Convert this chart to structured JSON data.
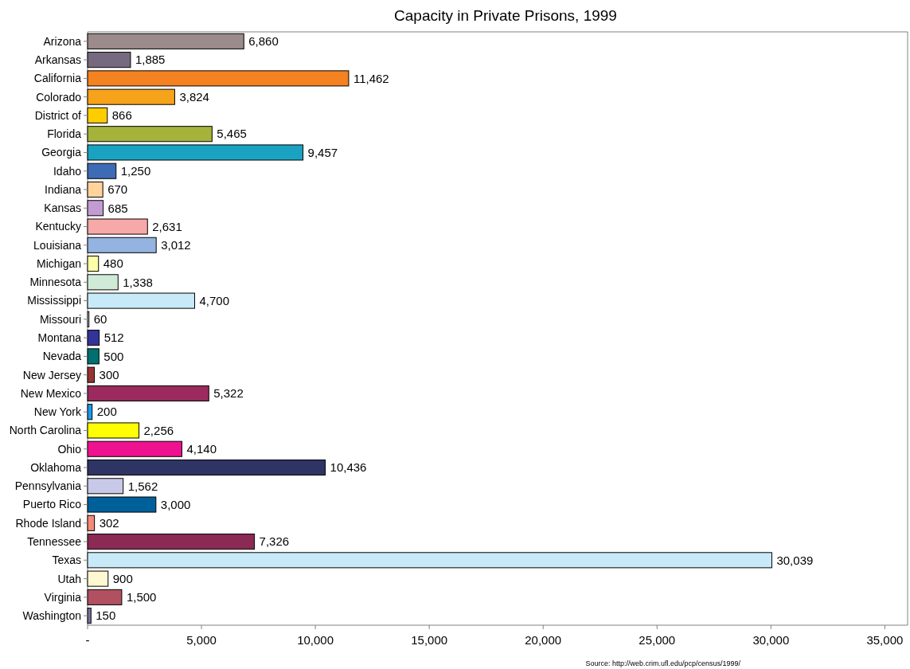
{
  "chart_data": {
    "type": "bar",
    "orientation": "horizontal",
    "title": "Capacity in Private Prisons, 1999",
    "categories": [
      "Arizona",
      "Arkansas",
      "California",
      "Colorado",
      "District of",
      "Florida",
      "Georgia",
      "Idaho",
      "Indiana",
      "Kansas",
      "Kentucky",
      "Louisiana",
      "Michigan",
      "Minnesota",
      "Mississippi",
      "Missouri",
      "Montana",
      "Nevada",
      "New Jersey",
      "New Mexico",
      "New York",
      "North Carolina",
      "Ohio",
      "Oklahoma",
      "Pennsylvania",
      "Puerto Rico",
      "Rhode Island",
      "Tennessee",
      "Texas",
      "Utah",
      "Virginia",
      "Washington"
    ],
    "values": [
      6860,
      1885,
      11462,
      3824,
      866,
      5465,
      9457,
      1250,
      670,
      685,
      2631,
      3012,
      480,
      1338,
      4700,
      60,
      512,
      500,
      300,
      5322,
      200,
      2256,
      4140,
      10436,
      1562,
      3000,
      302,
      7326,
      30039,
      900,
      1500,
      150
    ],
    "colors": [
      "#9b8b8b",
      "#766a80",
      "#f58220",
      "#f7a21b",
      "#ffcc00",
      "#a6b33b",
      "#1aa3c0",
      "#3d6bb5",
      "#ffd39b",
      "#c39bd3",
      "#f7a8a8",
      "#95b3e0",
      "#ffffa8",
      "#d0ead8",
      "#c8eaf8",
      "#ffffff",
      "#333399",
      "#007070",
      "#993333",
      "#9b2a5e",
      "#1a9bea",
      "#ffff00",
      "#ee1290",
      "#2e3464",
      "#c8c8e8",
      "#00609a",
      "#f58a78",
      "#8a2a55",
      "#c8eaf8",
      "#fff8d0",
      "#b05060",
      "#7a72a0"
    ],
    "xlim": [
      0,
      36000
    ],
    "xticks": [
      {
        "value": 0,
        "label": "-"
      },
      {
        "value": 5000,
        "label": "5,000"
      },
      {
        "value": 10000,
        "label": "10,000"
      },
      {
        "value": 15000,
        "label": "15,000"
      },
      {
        "value": 20000,
        "label": "20,000"
      },
      {
        "value": 25000,
        "label": "25,000"
      },
      {
        "value": 30000,
        "label": "30,000"
      },
      {
        "value": 35000,
        "label": "35,000"
      }
    ],
    "value_labels": [
      "6,860",
      "1,885",
      "11,462",
      "3,824",
      "866",
      "5,465",
      "9,457",
      "1,250",
      "670",
      "685",
      "2,631",
      "3,012",
      "480",
      "1,338",
      "4,700",
      "60",
      "512",
      "500",
      "300",
      "5,322",
      "200",
      "2,256",
      "4,140",
      "10,436",
      "1,562",
      "3,000",
      "302",
      "7,326",
      "30,039",
      "900",
      "1,500",
      "150"
    ],
    "annotations": [
      "Source: http://web.crim.ufl.edu/pcp/census/1999/"
    ]
  }
}
